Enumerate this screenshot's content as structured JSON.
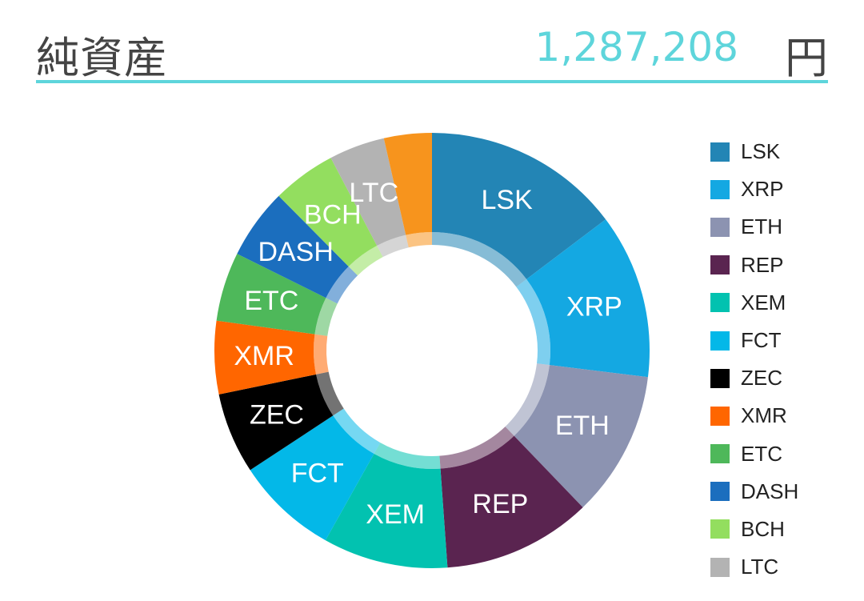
{
  "header": {
    "title": "純資産",
    "amount": "1,287,208",
    "unit": "円"
  },
  "chart_data": {
    "type": "pie",
    "style": "donut",
    "legend_position": "right",
    "slices": [
      {
        "label": "LSK",
        "value": 14.9,
        "color": "#2385B5",
        "text_color": "#ffffff"
      },
      {
        "label": "XRP",
        "value": 12.4,
        "color": "#14A8E2",
        "text_color": "#ffffff"
      },
      {
        "label": "ETH",
        "value": 11.0,
        "color": "#8C93B1",
        "text_color": "#ffffff"
      },
      {
        "label": "REP",
        "value": 11.2,
        "color": "#5A2450",
        "text_color": "#ffffff"
      },
      {
        "label": "XEM",
        "value": 9.4,
        "color": "#02C2B0",
        "text_color": "#ffffff"
      },
      {
        "label": "FCT",
        "value": 7.7,
        "color": "#03B8E8",
        "text_color": "#ffffff"
      },
      {
        "label": "ZEC",
        "value": 6.1,
        "color": "#000000",
        "text_color": "#ffffff"
      },
      {
        "label": "XMR",
        "value": 5.5,
        "color": "#FF6600",
        "text_color": "#ffffff"
      },
      {
        "label": "ETC",
        "value": 5.2,
        "color": "#4EB85A",
        "text_color": "#ffffff"
      },
      {
        "label": "DASH",
        "value": 5.3,
        "color": "#1B6EBE",
        "text_color": "#ffffff"
      },
      {
        "label": "BCH",
        "value": 4.8,
        "color": "#93DE5F",
        "text_color": "#ffffff"
      },
      {
        "label": "LTC",
        "value": 4.2,
        "color": "#B3B3B3",
        "text_color": "#ffffff"
      },
      {
        "label": "",
        "value": 3.6,
        "color": "#F7941D",
        "text_color": "#ffffff"
      }
    ],
    "legend": [
      "LSK",
      "XRP",
      "ETH",
      "REP",
      "XEM",
      "FCT",
      "ZEC",
      "XMR",
      "ETC",
      "DASH",
      "BCH",
      "LTC"
    ]
  }
}
